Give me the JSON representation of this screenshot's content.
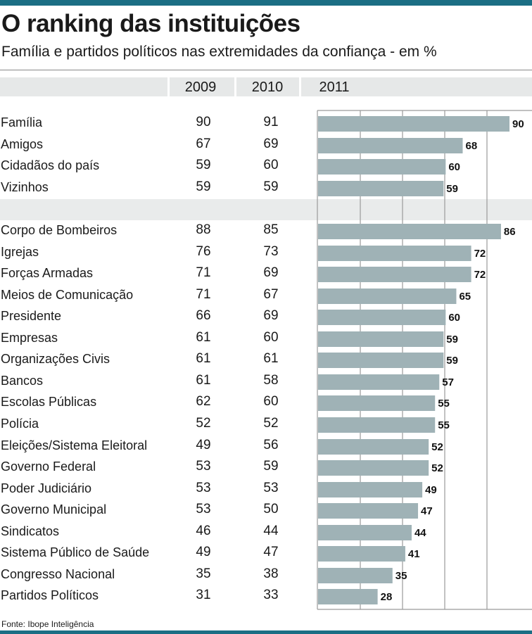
{
  "title": "O ranking das instituições",
  "subtitle": "Família e partidos políticos nas extremidades da confiança - em %",
  "footer": "Fonte: Ibope Inteligência",
  "colors": {
    "accent": "#1b6e84",
    "bar": "#9fb2b6",
    "band": "#e6e8e8",
    "grid": "#9a9a9a"
  },
  "chart_data": {
    "type": "bar",
    "orientation": "horizontal",
    "columns": [
      "2009",
      "2010",
      "2011"
    ],
    "xlim": [
      0,
      90
    ],
    "grid": true,
    "groups": [
      {
        "rows": [
          {
            "label": "Família",
            "v2009": 90,
            "v2010": 91,
            "v2011": 90
          },
          {
            "label": "Amigos",
            "v2009": 67,
            "v2010": 69,
            "v2011": 68
          },
          {
            "label": "Cidadãos do país",
            "v2009": 59,
            "v2010": 60,
            "v2011": 60
          },
          {
            "label": "Vizinhos",
            "v2009": 59,
            "v2010": 59,
            "v2011": 59
          }
        ]
      },
      {
        "rows": [
          {
            "label": "Corpo de Bombeiros",
            "v2009": 88,
            "v2010": 85,
            "v2011": 86
          },
          {
            "label": "Igrejas",
            "v2009": 76,
            "v2010": 73,
            "v2011": 72
          },
          {
            "label": "Forças Armadas",
            "v2009": 71,
            "v2010": 69,
            "v2011": 72
          },
          {
            "label": "Meios de Comunicação",
            "v2009": 71,
            "v2010": 67,
            "v2011": 65
          },
          {
            "label": "Presidente",
            "v2009": 66,
            "v2010": 69,
            "v2011": 60
          },
          {
            "label": "Empresas",
            "v2009": 61,
            "v2010": 60,
            "v2011": 59
          },
          {
            "label": "Organizações Civis",
            "v2009": 61,
            "v2010": 61,
            "v2011": 59
          },
          {
            "label": "Bancos",
            "v2009": 61,
            "v2010": 58,
            "v2011": 57
          },
          {
            "label": "Escolas Públicas",
            "v2009": 62,
            "v2010": 60,
            "v2011": 55
          },
          {
            "label": "Polícia",
            "v2009": 52,
            "v2010": 52,
            "v2011": 55
          },
          {
            "label": "Eleições/Sistema Eleitoral",
            "v2009": 49,
            "v2010": 56,
            "v2011": 52
          },
          {
            "label": "Governo Federal",
            "v2009": 53,
            "v2010": 59,
            "v2011": 52
          },
          {
            "label": "Poder Judiciário",
            "v2009": 53,
            "v2010": 53,
            "v2011": 49
          },
          {
            "label": "Governo Municipal",
            "v2009": 53,
            "v2010": 50,
            "v2011": 47
          },
          {
            "label": "Sindicatos",
            "v2009": 46,
            "v2010": 44,
            "v2011": 44
          },
          {
            "label": "Sistema Público de Saúde",
            "v2009": 49,
            "v2010": 47,
            "v2011": 41
          },
          {
            "label": "Congresso Nacional",
            "v2009": 35,
            "v2010": 38,
            "v2011": 35
          },
          {
            "label": "Partidos Políticos",
            "v2009": 31,
            "v2010": 33,
            "v2011": 28
          }
        ]
      }
    ]
  }
}
